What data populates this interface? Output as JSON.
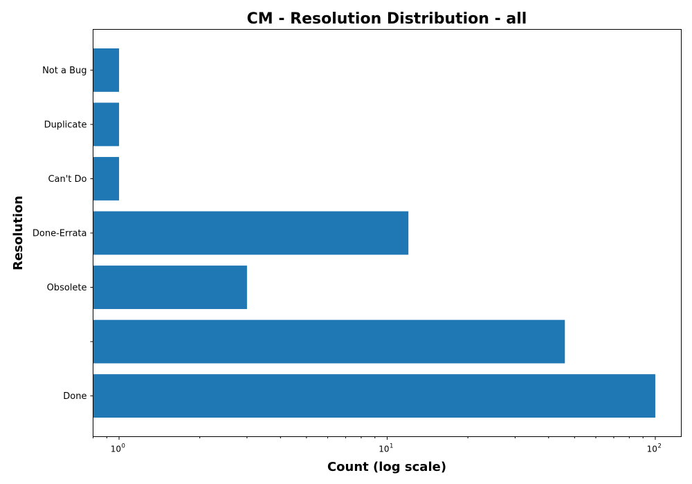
{
  "chart_data": {
    "type": "bar",
    "orientation": "horizontal",
    "title": "CM - Resolution Distribution - all",
    "xlabel": "Count (log scale)",
    "ylabel": "Resolution",
    "x_scale": "log",
    "xlim": [
      0.8,
      125
    ],
    "x_ticks": [
      {
        "value": 1,
        "base": "10",
        "exp": "0"
      },
      {
        "value": 10,
        "base": "10",
        "exp": "1"
      },
      {
        "value": 100,
        "base": "10",
        "exp": "2"
      }
    ],
    "categories": [
      "Done",
      "",
      "Obsolete",
      "Done-Errata",
      "Can't Do",
      "Duplicate",
      "Not a Bug"
    ],
    "values": [
      100,
      46,
      3,
      12,
      1,
      1,
      1
    ],
    "bar_color": "#1f77b4",
    "grid": false,
    "legend": "none"
  }
}
